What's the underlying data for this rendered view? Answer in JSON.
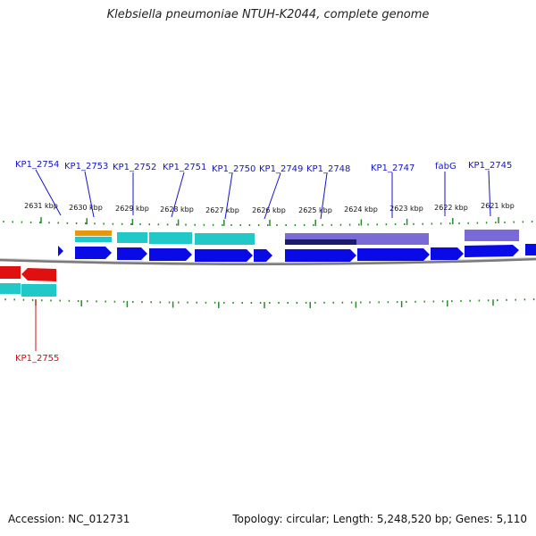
{
  "title": "Klebsiella pneumoniae NTUH-K2044, complete genome",
  "accession": "Accession: NC_012731",
  "summary": "Topology: circular; Length: 5,248,520 bp; Genes: 5,110",
  "colors": {
    "gene_forward": "#0a0ae6",
    "gene_reverse": "#e01010",
    "label_forward": "#1515c8",
    "label_reverse": "#d01010",
    "teal": "#20c8c8",
    "orange": "#e8960a",
    "purple": "#7a6ad8",
    "navy": "#1a1a6e",
    "tick": "#2a8a2a",
    "backbone": "#7a7a7a"
  },
  "scale_labels": [
    "2631 kbp",
    "2630 kbp",
    "2629 kbp",
    "2628 kbp",
    "2627 kbp",
    "2626 kbp",
    "2625 kbp",
    "2624 kbp",
    "2623 kbp",
    "2622 kbp",
    "2621 kbp"
  ],
  "genes": [
    {
      "label": "KP1_2754",
      "strand": "forward"
    },
    {
      "label": "KP1_2753",
      "strand": "forward"
    },
    {
      "label": "KP1_2752",
      "strand": "forward"
    },
    {
      "label": "KP1_2751",
      "strand": "forward"
    },
    {
      "label": "KP1_2750",
      "strand": "forward"
    },
    {
      "label": "KP1_2749",
      "strand": "forward"
    },
    {
      "label": "KP1_2748",
      "strand": "forward"
    },
    {
      "label": "KP1_2747",
      "strand": "forward"
    },
    {
      "label": "fabG",
      "strand": "forward"
    },
    {
      "label": "KP1_2745",
      "strand": "forward"
    },
    {
      "label": "KP1_2755",
      "strand": "reverse"
    }
  ]
}
